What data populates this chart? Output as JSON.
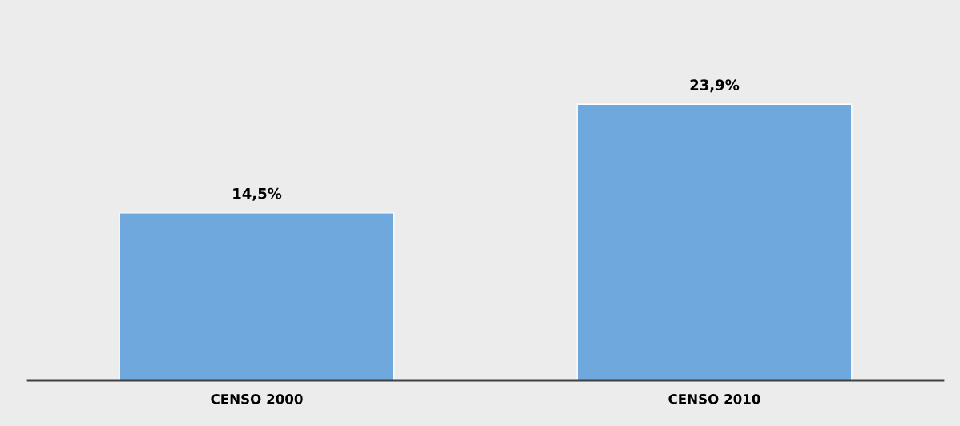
{
  "chart_data": {
    "type": "bar",
    "categories": [
      "CENSO 2000",
      "CENSO 2010"
    ],
    "values": [
      14.5,
      23.9
    ],
    "value_labels": [
      "14,5%",
      "23,9%"
    ],
    "color": "#6fa8dc",
    "grid": false,
    "legend": false
  }
}
